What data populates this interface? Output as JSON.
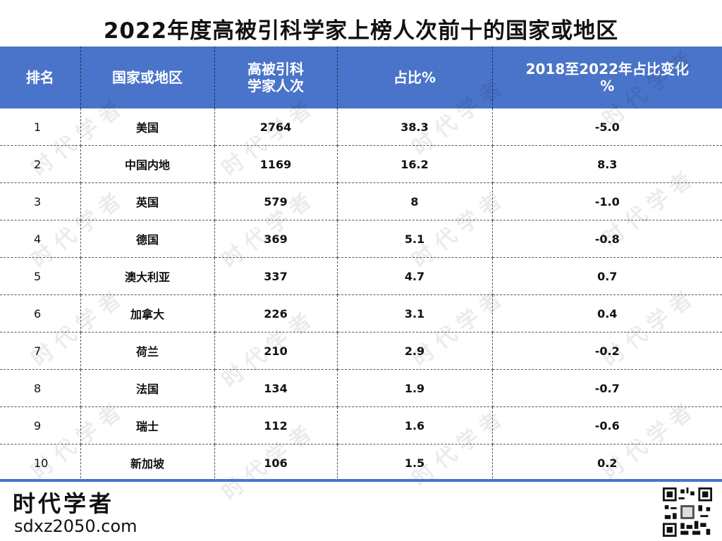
{
  "title": "2022年度高被引科学家上榜人次前十的国家或地区",
  "watermark": "时代学者",
  "brand": {
    "name": "时代学者",
    "url": "sdxz2050.com"
  },
  "colors": {
    "header": "#4a74c9",
    "footer_rule": "#4a74c9"
  },
  "chart_data": {
    "type": "table",
    "title": "2022年度高被引科学家上榜人次前十的国家或地区",
    "columns": [
      "排名",
      "国家或地区",
      "高被引科学家人次",
      "占比%",
      "2018至2022年占比变化%"
    ],
    "header_lines": [
      [
        "排名"
      ],
      [
        "国家或地区"
      ],
      [
        "高被引科",
        "学家人次"
      ],
      [
        "占比%"
      ],
      [
        "2018至2022年占比变化",
        "%"
      ]
    ],
    "rows": [
      [
        "1",
        "美国",
        "2764",
        "38.3",
        "-5.0"
      ],
      [
        "2",
        "中国内地",
        "1169",
        "16.2",
        "8.3"
      ],
      [
        "3",
        "英国",
        "579",
        "8",
        "-1.0"
      ],
      [
        "4",
        "德国",
        "369",
        "5.1",
        "-0.8"
      ],
      [
        "5",
        "澳大利亚",
        "337",
        "4.7",
        "0.7"
      ],
      [
        "6",
        "加拿大",
        "226",
        "3.1",
        "0.4"
      ],
      [
        "7",
        "荷兰",
        "210",
        "2.9",
        "-0.2"
      ],
      [
        "8",
        "法国",
        "134",
        "1.9",
        "-0.7"
      ],
      [
        "9",
        "瑞士",
        "112",
        "1.6",
        "-0.6"
      ],
      [
        "10",
        "新加坡",
        "106",
        "1.5",
        "0.2"
      ]
    ]
  }
}
